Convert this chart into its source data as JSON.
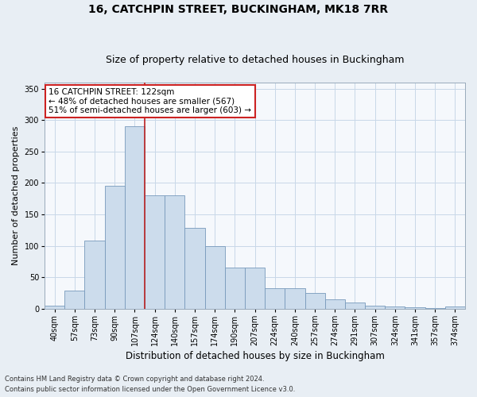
{
  "title": "16, CATCHPIN STREET, BUCKINGHAM, MK18 7RR",
  "subtitle": "Size of property relative to detached houses in Buckingham",
  "xlabel": "Distribution of detached houses by size in Buckingham",
  "ylabel": "Number of detached properties",
  "footer_line1": "Contains HM Land Registry data © Crown copyright and database right 2024.",
  "footer_line2": "Contains public sector information licensed under the Open Government Licence v3.0.",
  "categories": [
    "40sqm",
    "57sqm",
    "73sqm",
    "90sqm",
    "107sqm",
    "124sqm",
    "140sqm",
    "157sqm",
    "174sqm",
    "190sqm",
    "207sqm",
    "224sqm",
    "240sqm",
    "257sqm",
    "274sqm",
    "291sqm",
    "307sqm",
    "324sqm",
    "341sqm",
    "357sqm",
    "374sqm"
  ],
  "values": [
    5,
    28,
    108,
    195,
    290,
    180,
    180,
    128,
    100,
    65,
    65,
    33,
    33,
    25,
    15,
    10,
    5,
    3,
    2,
    1,
    3
  ],
  "bar_color": "#ccdcec",
  "bar_edge_color": "#7799bb",
  "vline_x": 4.5,
  "vline_color": "#bb2222",
  "annotation_text": "16 CATCHPIN STREET: 122sqm\n← 48% of detached houses are smaller (567)\n51% of semi-detached houses are larger (603) →",
  "annotation_box_color": "#ffffff",
  "annotation_box_edge": "#cc2222",
  "ylim": [
    0,
    360
  ],
  "yticks": [
    0,
    50,
    100,
    150,
    200,
    250,
    300,
    350
  ],
  "bg_color": "#e8eef4",
  "plot_bg_color": "#f5f8fc",
  "grid_color": "#c8d8e8",
  "title_fontsize": 10,
  "subtitle_fontsize": 9,
  "tick_fontsize": 7,
  "ylabel_fontsize": 8,
  "xlabel_fontsize": 8.5,
  "annotation_fontsize": 7.5,
  "footer_fontsize": 6
}
